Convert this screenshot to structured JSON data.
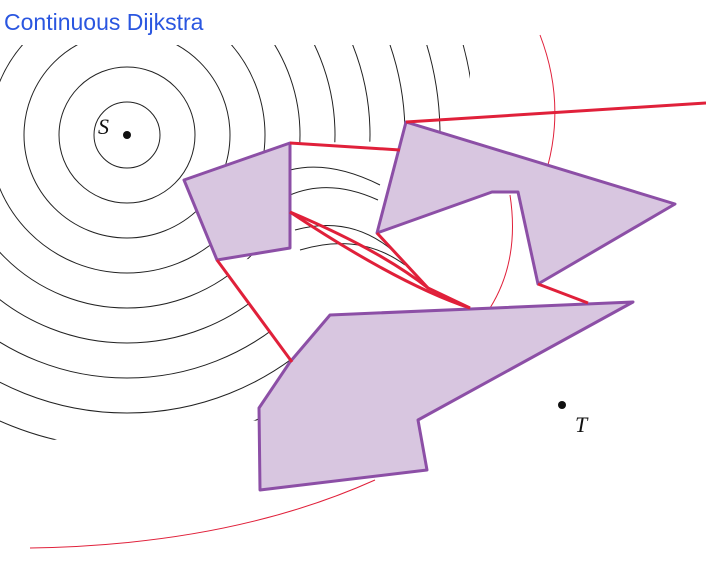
{
  "title": "Continuous Dijkstra",
  "labels": {
    "source": "S",
    "target": "T"
  }
}
